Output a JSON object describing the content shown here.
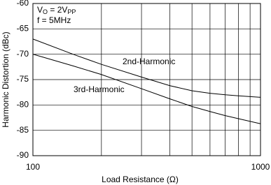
{
  "chart_data": {
    "type": "line",
    "x_label": "Load Resistance (Ω)",
    "y_label": "Harmonic Distortion (dBc)",
    "annotation_lines": [
      [
        "V",
        "O",
        " = 2V",
        "PP"
      ],
      [
        "f = 5MHz"
      ]
    ],
    "x_scale": "log",
    "x": [
      100,
      150,
      200,
      300,
      400,
      500,
      600,
      700,
      800,
      1000
    ],
    "series": [
      {
        "name": "2nd-Harmonic",
        "color": "#000000",
        "values": [
          -67,
          -70,
          -72,
          -74.5,
          -76.2,
          -77.2,
          -77.7,
          -78,
          -78.2,
          -78.5
        ]
      },
      {
        "name": "3rd-Harmonic",
        "color": "#000000",
        "values": [
          -70,
          -72.3,
          -74,
          -76.8,
          -78.8,
          -80.3,
          -81.3,
          -82.1,
          -82.7,
          -83.7
        ]
      }
    ],
    "xlim": [
      100,
      1000
    ],
    "xticks": [
      100,
      1000
    ],
    "x_minor_grid": [
      200,
      300,
      400,
      500,
      600,
      700,
      800,
      900
    ],
    "ylim": [
      -90,
      -60
    ],
    "yticks": [
      -60,
      -65,
      -70,
      -75,
      -80,
      -85,
      -90
    ],
    "grid": true
  }
}
